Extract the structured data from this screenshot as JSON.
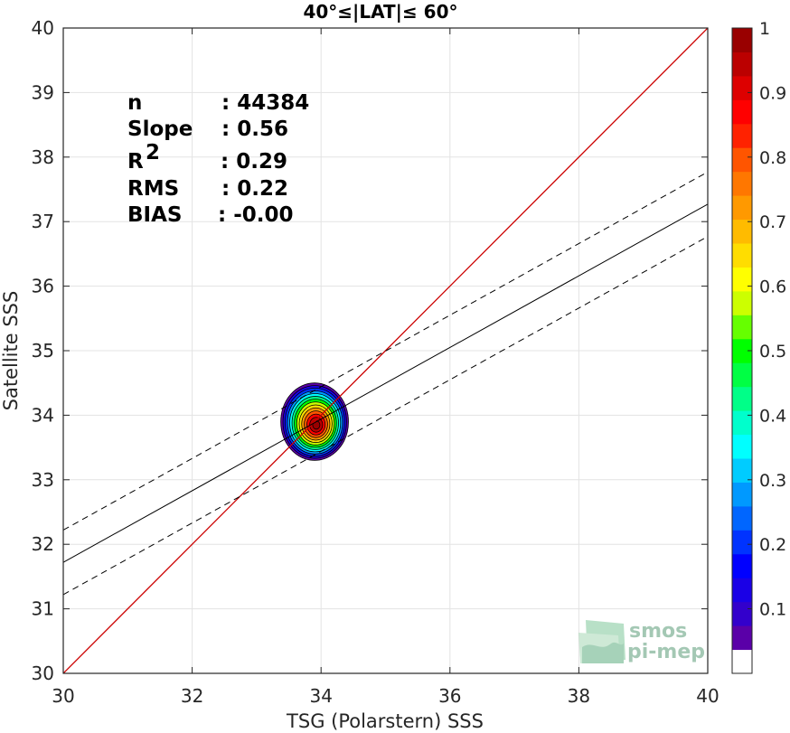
{
  "chart_data": {
    "type": "scatter",
    "title": "40°≤|LAT|≤ 60°",
    "xlabel": "TSG (Polarstern) SSS",
    "ylabel": "Satellite SSS",
    "xlim": [
      30,
      40
    ],
    "ylim": [
      30,
      40
    ],
    "xticks": [
      "30",
      "32",
      "34",
      "36",
      "38",
      "40"
    ],
    "yticks": [
      "30",
      "31",
      "32",
      "33",
      "34",
      "35",
      "36",
      "37",
      "38",
      "39",
      "40"
    ],
    "grid": true,
    "density_center": {
      "x": 33.9,
      "y": 33.9
    },
    "density_extent": {
      "x": [
        33.35,
        34.4
      ],
      "y": [
        33.3,
        34.5
      ]
    },
    "lines": [
      {
        "kind": "one-to-one",
        "color": "#cc0000",
        "style": "solid",
        "x": [
          30,
          40
        ],
        "y": [
          30,
          40
        ]
      },
      {
        "kind": "regression",
        "color": "#000000",
        "style": "solid",
        "x": [
          30,
          40
        ],
        "y": [
          31.72,
          37.27
        ]
      },
      {
        "kind": "regression-upper",
        "color": "#000000",
        "style": "dashed",
        "x": [
          30,
          40
        ],
        "y": [
          32.22,
          37.77
        ]
      },
      {
        "kind": "regression-lower",
        "color": "#000000",
        "style": "dashed",
        "x": [
          30,
          40
        ],
        "y": [
          31.22,
          36.77
        ]
      }
    ],
    "stats": [
      {
        "label": "n",
        "value": ": 44384"
      },
      {
        "label": "Slope",
        "value": ": 0.56"
      },
      {
        "label": "R",
        "sup": "2",
        "value": ": 0.29"
      },
      {
        "label": "RMS",
        "value": ": 0.22"
      },
      {
        "label": "BIAS",
        "value": ": -0.00"
      }
    ],
    "colorbar": {
      "range": [
        0,
        1
      ],
      "ticks": [
        "0.1",
        "0.2",
        "0.3",
        "0.4",
        "0.5",
        "0.6",
        "0.7",
        "0.8",
        "0.9",
        "1"
      ],
      "colors": [
        "#ffffff",
        "#5a00a8",
        "#3300cc",
        "#1a00e6",
        "#0000ff",
        "#0033ff",
        "#0066ff",
        "#0099ff",
        "#00ccff",
        "#00ffff",
        "#00ffcc",
        "#00ff88",
        "#00ff44",
        "#00ff00",
        "#66ff00",
        "#ccff00",
        "#ffff00",
        "#ffdd00",
        "#ffbb00",
        "#ff9900",
        "#ff7700",
        "#ff5500",
        "#ff2200",
        "#ff0000",
        "#dd0000",
        "#bb0000",
        "#990000"
      ]
    }
  },
  "logo": {
    "line1": "smos",
    "line2": "pi-mep"
  }
}
